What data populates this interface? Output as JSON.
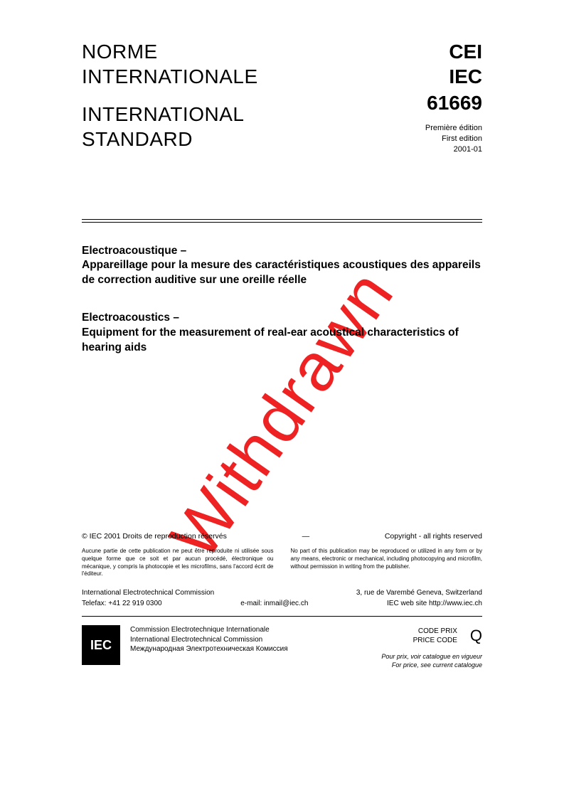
{
  "header": {
    "left_fr_1": "NORME",
    "left_fr_2": "INTERNATIONALE",
    "left_en_1": "INTERNATIONAL",
    "left_en_2": "STANDARD",
    "org_fr": "CEI",
    "org_en": "IEC",
    "standard_number": "61669",
    "edition_fr": "Première édition",
    "edition_en": "First edition",
    "edition_date": "2001-01"
  },
  "title": {
    "fr_heading": "Electroacoustique –",
    "fr_body": "Appareillage pour la mesure des caractéristiques acoustiques des appareils de correction auditive sur une oreille réelle",
    "en_heading": "Electroacoustics –",
    "en_body": "Equipment for the measurement of real-ear acoustical characteristics of hearing aids"
  },
  "watermark": "Withdrawn",
  "copyright": {
    "left": "© IEC 2001  Droits de reproduction réservés",
    "sep": "—",
    "right": "Copyright - all rights reserved"
  },
  "legal": {
    "fr": "Aucune partie de cette publication ne peut être reproduite ni utilisée sous quelque forme que ce soit et par aucun procédé, électronique ou mécanique, y compris la photocopie et les microfilms, sans l'accord écrit de l'éditeur.",
    "en": "No part of this publication may be reproduced or utilized in any form or by any means, electronic or mechanical, including photocopying and microfilm, without permission in writing from the publisher."
  },
  "contact": {
    "org": "International Electrotechnical Commission",
    "address": "3, rue de Varembé  Geneva, Switzerland",
    "fax_label": "Telefax: +41 22 919 0300",
    "email_label": "e-mail: inmail@iec.ch",
    "web_label": "IEC web site  http://www.iec.ch"
  },
  "footer": {
    "logo_text": "IEC",
    "name_fr": "Commission Electrotechnique Internationale",
    "name_en": "International Electrotechnical Commission",
    "name_ru": "Международная Электротехническая Комиссия",
    "price_label_fr": "CODE PRIX",
    "price_label_en": "PRICE CODE",
    "price_code": "Q",
    "note_fr": "Pour prix, voir catalogue en vigueur",
    "note_en": "For price, see current catalogue"
  },
  "colors": {
    "watermark": "#e22222",
    "text": "#000000",
    "background": "#ffffff"
  }
}
